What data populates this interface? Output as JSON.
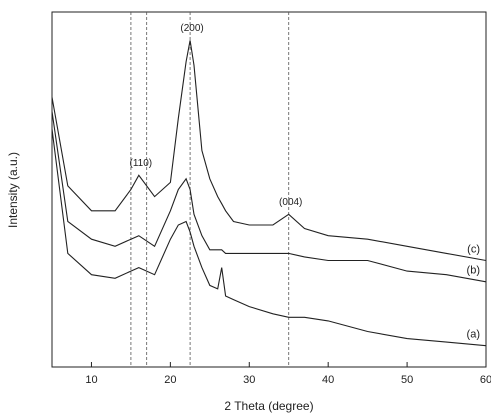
{
  "chart_data": {
    "type": "line",
    "x_label": "2 Theta (degree)",
    "y_label": "Intensity (a.u.)",
    "x": [
      5,
      7,
      10,
      13,
      15,
      16,
      18,
      20,
      21,
      22,
      22.5,
      23,
      24,
      25,
      26,
      26.5,
      27,
      28,
      30,
      33,
      35,
      37,
      40,
      45,
      50,
      55,
      60
    ],
    "series": [
      {
        "name": "(a)",
        "color": "#222222",
        "values": [
          67,
          32,
          26,
          25,
          27,
          28,
          26,
          36,
          40,
          41,
          38,
          34,
          28,
          23,
          22,
          28,
          20,
          19,
          17,
          15,
          14,
          14,
          13,
          10,
          8,
          7,
          6
        ]
      },
      {
        "name": "(b)",
        "color": "#222222",
        "values": [
          72,
          41,
          36,
          34,
          36,
          37,
          34,
          44,
          50,
          53,
          50,
          43,
          37,
          33,
          33,
          33,
          32,
          32,
          32,
          32,
          32,
          31,
          30,
          30,
          27,
          26,
          24
        ]
      },
      {
        "name": "(c)",
        "color": "#222222",
        "values": [
          76,
          51,
          44,
          44,
          50,
          54,
          48,
          52,
          70,
          86,
          92,
          85,
          61,
          53,
          48,
          46,
          44,
          41,
          40,
          40,
          43,
          39,
          37,
          36,
          34,
          32,
          30
        ]
      }
    ],
    "vlines": [
      15,
      17,
      22.5,
      35
    ],
    "annotations": [
      {
        "text": "(110)",
        "x": 16
      },
      {
        "text": "(200)",
        "x": 22.5
      },
      {
        "text": "(004)",
        "x": 35
      }
    ],
    "xlim": [
      5,
      60
    ],
    "xticks": [
      10,
      20,
      30,
      40,
      50,
      60
    ],
    "ylim": [
      0,
      100
    ]
  }
}
